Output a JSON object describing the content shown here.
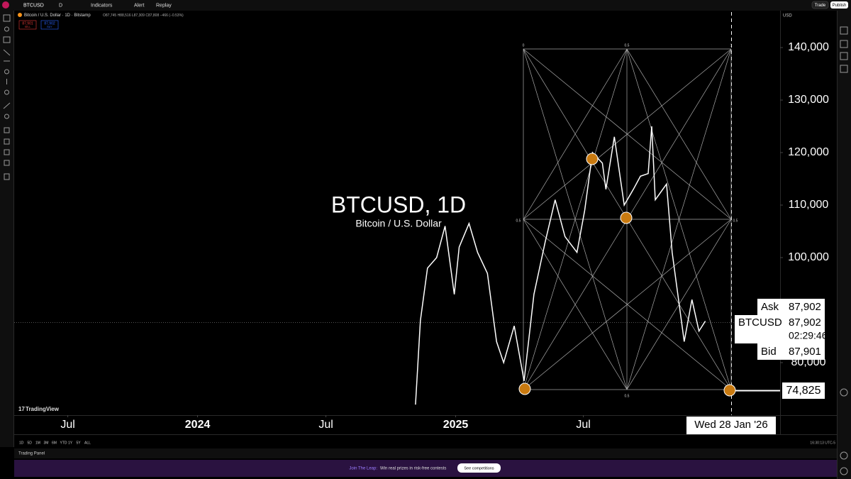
{
  "toolbar": {
    "symbol": "BTCUSD",
    "interval": "D",
    "items": [
      "Indicators",
      "Alert",
      "Replay"
    ],
    "buttons": [
      "Trade",
      "Publish"
    ]
  },
  "legend": {
    "title": "Bitcoin / U.S. Dollar · 1D · Bitstamp",
    "ohlc": "O87,745 H88,516 L87,309 C87,808 −466 (−0.53%)",
    "sell": "87,901",
    "sell_label": "SELL",
    "buy": "87,902",
    "buy_label": "BUY"
  },
  "watermark": {
    "title": "BTCUSD, 1D",
    "subtitle": "Bitcoin / U.S. Dollar"
  },
  "currency": "USD",
  "quote": {
    "ask_label": "Ask",
    "ask": "87,902",
    "symbol": "BTCUSD",
    "last": "87,902",
    "countdown": "02:29:46",
    "bid_label": "Bid",
    "bid": "87,901"
  },
  "drawing": {
    "price_label": "74,825",
    "levels": [
      "0",
      "0.5",
      "1"
    ],
    "crosshair_date": "Wed 28 Jan '26"
  },
  "chart_data": {
    "type": "line",
    "color": "#ffffff",
    "x": [
      "2024-11-05",
      "2024-11-12",
      "2024-11-22",
      "2024-12-05",
      "2024-12-17",
      "2024-12-30",
      "2025-01-06",
      "2025-01-20",
      "2025-02-01",
      "2025-02-15",
      "2025-02-28",
      "2025-03-10",
      "2025-03-25",
      "2025-04-08",
      "2025-04-22",
      "2025-05-08",
      "2025-05-22",
      "2025-06-05",
      "2025-06-22",
      "2025-07-03",
      "2025-07-14",
      "2025-07-28",
      "2025-08-02",
      "2025-08-14",
      "2025-08-28",
      "2025-09-10",
      "2025-09-20",
      "2025-10-01",
      "2025-10-06",
      "2025-10-11",
      "2025-10-27",
      "2025-11-04",
      "2025-11-21",
      "2025-12-02",
      "2025-12-12",
      "2025-12-21"
    ],
    "values": [
      72000,
      88000,
      98000,
      100000,
      106000,
      93000,
      102000,
      106500,
      101000,
      97000,
      84000,
      80000,
      87000,
      76500,
      93000,
      103000,
      111000,
      104000,
      101000,
      109000,
      120000,
      118000,
      113000,
      123000,
      110000,
      113000,
      115500,
      116000,
      125000,
      111000,
      114000,
      101000,
      84000,
      92000,
      86000,
      87902
    ],
    "xlim": [
      "2023-04-16",
      "2026-04-06"
    ],
    "xticks": [
      {
        "value": "2023-07-01",
        "label": "Jul"
      },
      {
        "value": "2024-01-01",
        "label": "2024"
      },
      {
        "value": "2024-07-01",
        "label": "Jul"
      },
      {
        "value": "2025-01-01",
        "label": "2025"
      },
      {
        "value": "2025-07-01",
        "label": "Jul"
      }
    ],
    "ylim": [
      70000,
      146760
    ],
    "yticks": [
      {
        "value": 80000,
        "label": "80,000"
      },
      {
        "value": 100000,
        "label": "100,000"
      },
      {
        "value": 110000,
        "label": "110,000"
      },
      {
        "value": 120000,
        "label": "120,000"
      },
      {
        "value": 130000,
        "label": "130,000"
      },
      {
        "value": 140000,
        "label": "140,000"
      }
    ]
  },
  "bottom": {
    "ranges": [
      "1D",
      "5D",
      "1M",
      "3M",
      "6M",
      "YTD",
      "1Y",
      "5Y",
      "ALL"
    ],
    "clock": "16:30:13 UTC-5",
    "panel": "Trading Panel"
  },
  "banner": {
    "lead": "Join The Leap:",
    "text": "Win real prizes in risk-free contests",
    "button": "See competitions"
  },
  "brand": "TradingView"
}
